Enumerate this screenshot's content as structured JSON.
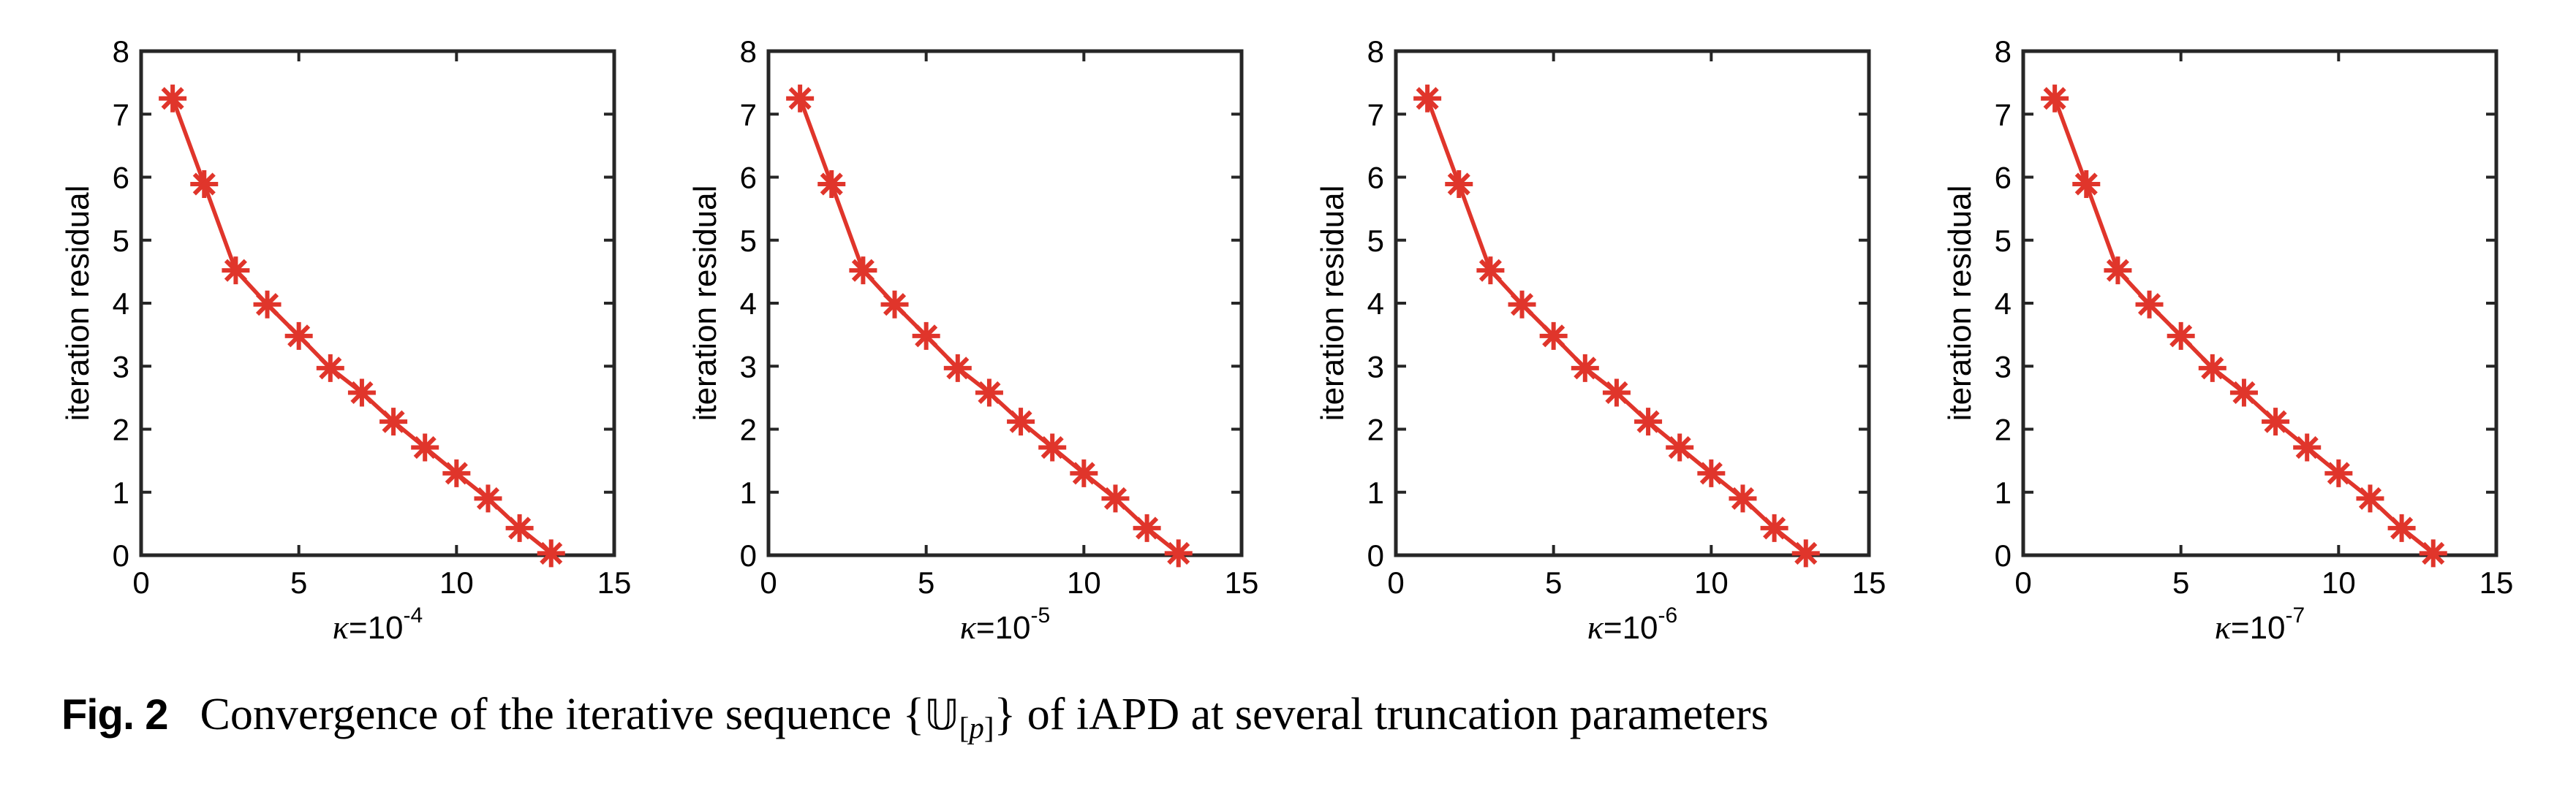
{
  "page": {
    "background": "#ffffff"
  },
  "style": {
    "axis_color": "#262626",
    "text_color": "#000000",
    "line_color": "#e0352b"
  },
  "caption": {
    "label": "Fig. 2",
    "text_1": "Convergence of the iterative sequence {",
    "u_symbol": "𝕌",
    "sub_open": "[",
    "sub_p": "p",
    "sub_close": "]",
    "text_2": "} of iAPD at several truncation parameters"
  },
  "chart_data": [
    {
      "type": "line",
      "title": "",
      "ylabel": "iteration residual",
      "xlabel_kappa": "κ",
      "xlabel_base": "=10",
      "xlabel_exponent": "-4",
      "xlim": [
        0,
        15
      ],
      "ylim": [
        0,
        8
      ],
      "xticks": [
        0,
        5,
        10,
        15
      ],
      "yticks": [
        0,
        1,
        2,
        3,
        4,
        5,
        6,
        7,
        8
      ],
      "grid": false,
      "legend": null,
      "series": [
        {
          "name": "iteration residual",
          "marker": "asterisk",
          "color": "#e0352b",
          "x": [
            1,
            2,
            3,
            4,
            5,
            6,
            7,
            8,
            9,
            10,
            11,
            12,
            13
          ],
          "y": [
            7.25,
            5.89,
            4.52,
            3.98,
            3.48,
            2.97,
            2.58,
            2.12,
            1.71,
            1.3,
            0.9,
            0.43,
            0.03
          ]
        }
      ]
    },
    {
      "type": "line",
      "title": "",
      "ylabel": "iteration residual",
      "xlabel_kappa": "κ",
      "xlabel_base": "=10",
      "xlabel_exponent": "-5",
      "xlim": [
        0,
        15
      ],
      "ylim": [
        0,
        8
      ],
      "xticks": [
        0,
        5,
        10,
        15
      ],
      "yticks": [
        0,
        1,
        2,
        3,
        4,
        5,
        6,
        7,
        8
      ],
      "grid": false,
      "legend": null,
      "series": [
        {
          "name": "iteration residual",
          "marker": "asterisk",
          "color": "#e0352b",
          "x": [
            1,
            2,
            3,
            4,
            5,
            6,
            7,
            8,
            9,
            10,
            11,
            12,
            13
          ],
          "y": [
            7.25,
            5.89,
            4.52,
            3.98,
            3.48,
            2.97,
            2.58,
            2.12,
            1.71,
            1.3,
            0.9,
            0.43,
            0.03
          ]
        }
      ]
    },
    {
      "type": "line",
      "title": "",
      "ylabel": "iteration residual",
      "xlabel_kappa": "κ",
      "xlabel_base": "=10",
      "xlabel_exponent": "-6",
      "xlim": [
        0,
        15
      ],
      "ylim": [
        0,
        8
      ],
      "xticks": [
        0,
        5,
        10,
        15
      ],
      "yticks": [
        0,
        1,
        2,
        3,
        4,
        5,
        6,
        7,
        8
      ],
      "grid": false,
      "legend": null,
      "series": [
        {
          "name": "iteration residual",
          "marker": "asterisk",
          "color": "#e0352b",
          "x": [
            1,
            2,
            3,
            4,
            5,
            6,
            7,
            8,
            9,
            10,
            11,
            12,
            13
          ],
          "y": [
            7.25,
            5.89,
            4.52,
            3.98,
            3.48,
            2.97,
            2.58,
            2.12,
            1.71,
            1.3,
            0.9,
            0.43,
            0.03
          ]
        }
      ]
    },
    {
      "type": "line",
      "title": "",
      "ylabel": "iteration residual",
      "xlabel_kappa": "κ",
      "xlabel_base": "=10",
      "xlabel_exponent": "-7",
      "xlim": [
        0,
        15
      ],
      "ylim": [
        0,
        8
      ],
      "xticks": [
        0,
        5,
        10,
        15
      ],
      "yticks": [
        0,
        1,
        2,
        3,
        4,
        5,
        6,
        7,
        8
      ],
      "grid": false,
      "legend": null,
      "series": [
        {
          "name": "iteration residual",
          "marker": "asterisk",
          "color": "#e0352b",
          "x": [
            1,
            2,
            3,
            4,
            5,
            6,
            7,
            8,
            9,
            10,
            11,
            12,
            13
          ],
          "y": [
            7.25,
            5.89,
            4.52,
            3.98,
            3.48,
            2.97,
            2.58,
            2.12,
            1.71,
            1.3,
            0.9,
            0.43,
            0.03
          ]
        }
      ]
    }
  ]
}
